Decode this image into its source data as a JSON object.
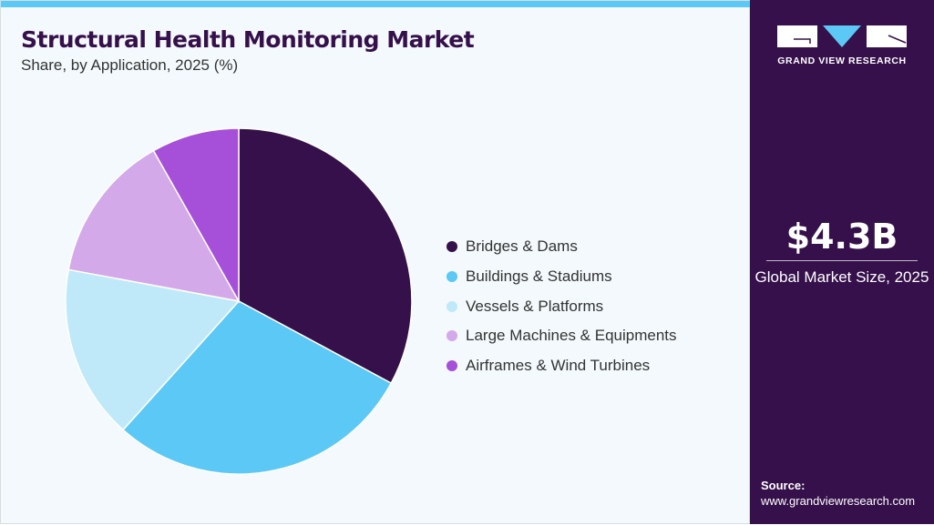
{
  "chart_data": {
    "type": "pie",
    "title": "Structural Health Monitoring Market",
    "subtitle": "Share, by Application, 2025 (%)",
    "categories": [
      "Bridges & Dams",
      "Buildings & Stadiums",
      "Vessels & Platforms",
      "Large Machines & Equipments",
      "Airframes & Wind Turbines"
    ],
    "values": [
      32.9,
      28.8,
      16.3,
      13.9,
      8.2
    ],
    "colors": [
      "#35104a",
      "#5bc8f5",
      "#bfe9f9",
      "#d3a9ea",
      "#a64fd9"
    ],
    "legend": "right"
  },
  "sidebar": {
    "logo_text": "GRAND VIEW RESEARCH",
    "market_size": "$4.3B",
    "market_label": "Global Market Size, 2025",
    "source_label": "Source:",
    "source_url": "www.grandviewresearch.com"
  }
}
